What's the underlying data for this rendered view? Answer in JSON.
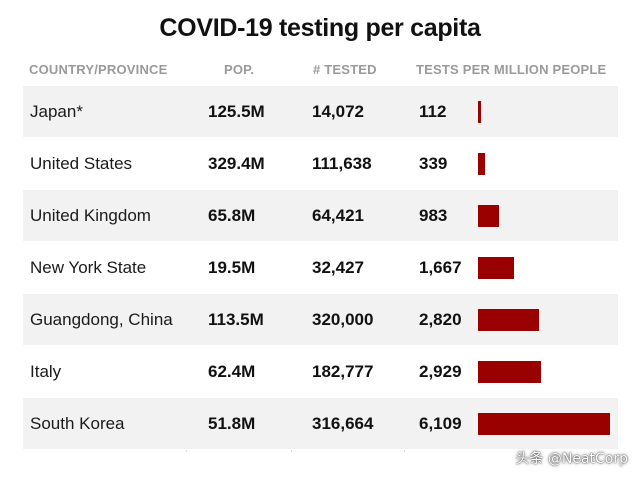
{
  "chart_data": {
    "type": "table",
    "title": "COVID-19 testing per capita",
    "columns": [
      "COUNTRY/PROVINCE",
      "POP.",
      "# TESTED",
      "TESTS PER MILLION PEOPLE"
    ],
    "rows": [
      {
        "country": "Japan*",
        "pop": "125.5M",
        "tested": "14,072",
        "tpm_label": "112",
        "tpm": 112
      },
      {
        "country": "United States",
        "pop": "329.4M",
        "tested": "111,638",
        "tpm_label": "339",
        "tpm": 339
      },
      {
        "country": "United Kingdom",
        "pop": "65.8M",
        "tested": "64,421",
        "tpm_label": "983",
        "tpm": 983
      },
      {
        "country": "New York State",
        "pop": "19.5M",
        "tested": "32,427",
        "tpm_label": "1,667",
        "tpm": 1667
      },
      {
        "country": "Guangdong, China",
        "pop": "113.5M",
        "tested": "320,000",
        "tpm_label": "2,820",
        "tpm": 2820
      },
      {
        "country": "Italy",
        "pop": "62.4M",
        "tested": "182,777",
        "tpm_label": "2,929",
        "tpm": 2929
      },
      {
        "country": "South Korea",
        "pop": "51.8M",
        "tested": "316,664",
        "tpm_label": "6,109",
        "tpm": 6109
      }
    ],
    "bar_xlim": [
      0,
      6109
    ],
    "bar_color": "#990000"
  },
  "watermark": "头条 @NeatCorp"
}
